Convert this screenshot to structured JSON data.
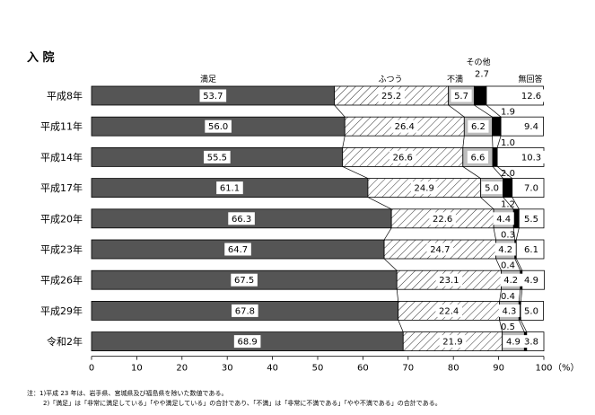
{
  "chart_data": {
    "type": "bar",
    "orientation": "horizontal",
    "stacked": true,
    "title": "入 院",
    "categories": [
      "平成8年",
      "平成11年",
      "平成14年",
      "平成17年",
      "平成20年",
      "平成23年",
      "平成26年",
      "平成29年",
      "令和2年"
    ],
    "series": [
      {
        "name": "満足",
        "fill": "#555555",
        "values": [
          53.7,
          56.0,
          55.5,
          61.1,
          66.3,
          64.7,
          67.5,
          67.8,
          68.9
        ]
      },
      {
        "name": "ふつう",
        "fill": "hatch",
        "values": [
          25.2,
          26.4,
          26.6,
          24.9,
          22.6,
          24.7,
          23.1,
          22.4,
          21.9
        ]
      },
      {
        "name": "不満",
        "fill": "#bdbdbd",
        "values": [
          5.7,
          6.2,
          6.6,
          5.0,
          4.4,
          4.2,
          4.2,
          4.3,
          4.9
        ]
      },
      {
        "name": "その他",
        "fill": "#000000",
        "values": [
          2.7,
          1.9,
          1.0,
          2.0,
          1.2,
          0.3,
          0.4,
          0.4,
          0.5
        ]
      },
      {
        "name": "無回答",
        "fill": "#ffffff",
        "values": [
          12.6,
          9.4,
          10.3,
          7.0,
          5.5,
          6.1,
          4.9,
          5.0,
          3.8
        ]
      }
    ],
    "labels": {
      "満足": [
        "53.7",
        "56.0",
        "55.5",
        "61.1",
        "66.3",
        "64.7",
        "67.5",
        "67.8",
        "68.9"
      ],
      "ふつう": [
        "25.2",
        "26.4",
        "26.6",
        "24.9",
        "22.6",
        "24.7",
        "23.1",
        "22.4",
        "21.9"
      ],
      "不満": [
        "5.7",
        "6.2",
        "6.6",
        "5.0",
        "4.4",
        "4.2",
        "4.2",
        "4.3",
        "4.9"
      ],
      "その他": [
        "2.7",
        "1.9",
        "1.0",
        "2.0",
        "1.2",
        "0.3",
        "0.4",
        "0.4",
        "0.5"
      ],
      "無回答": [
        "12.6",
        "9.4",
        "10.3",
        "7.0",
        "5.5",
        "6.1",
        "4.9",
        "5.0",
        "3.8"
      ]
    },
    "series_header": [
      "満足",
      "ふつう",
      "不満",
      "その他",
      "無回答"
    ],
    "xlim": [
      0,
      100
    ],
    "xticks": [
      "0",
      "10",
      "20",
      "30",
      "40",
      "50",
      "60",
      "70",
      "80",
      "90",
      "100"
    ],
    "xunit": "（%）",
    "legend": "labels-above-first-bar"
  },
  "notes": [
    "注：1)平成 23 年は、岩手県、宮城県及び福島県を除いた数値である。",
    "2)「満足」は「非常に満足している」「やや満足している」の合計であり、「不満」は「非常に不満である」「やや不満である」の合計である。"
  ]
}
